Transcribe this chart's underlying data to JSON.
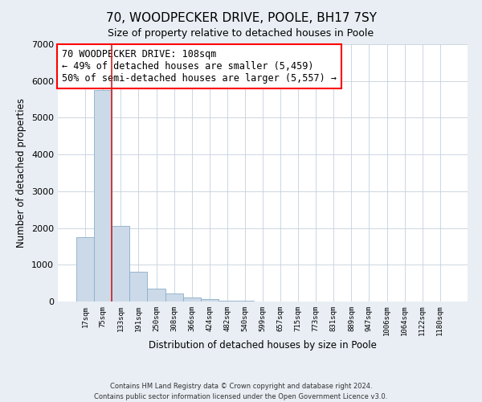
{
  "title": "70, WOODPECKER DRIVE, POOLE, BH17 7SY",
  "subtitle": "Size of property relative to detached houses in Poole",
  "xlabel": "Distribution of detached houses by size in Poole",
  "ylabel": "Number of detached properties",
  "bar_labels": [
    "17sqm",
    "75sqm",
    "133sqm",
    "191sqm",
    "250sqm",
    "308sqm",
    "366sqm",
    "424sqm",
    "482sqm",
    "540sqm",
    "599sqm",
    "657sqm",
    "715sqm",
    "773sqm",
    "831sqm",
    "889sqm",
    "947sqm",
    "1006sqm",
    "1064sqm",
    "1122sqm",
    "1180sqm"
  ],
  "bar_values": [
    1750,
    5750,
    2050,
    800,
    360,
    215,
    100,
    55,
    28,
    12,
    6,
    3,
    2,
    0,
    0,
    0,
    0,
    0,
    0,
    0,
    0
  ],
  "bar_color": "#ccd9e8",
  "bar_edgecolor": "#8aafc8",
  "vline_color": "#cc2222",
  "annotation_line1": "70 WOODPECKER DRIVE: 108sqm",
  "annotation_line2": "← 49% of detached houses are smaller (5,459)",
  "annotation_line3": "50% of semi-detached houses are larger (5,557) →",
  "ylim": [
    0,
    7000
  ],
  "yticks": [
    0,
    1000,
    2000,
    3000,
    4000,
    5000,
    6000,
    7000
  ],
  "footer_line1": "Contains HM Land Registry data © Crown copyright and database right 2024.",
  "footer_line2": "Contains public sector information licensed under the Open Government Licence v3.0.",
  "background_color": "#e8eef4",
  "plot_background": "#ffffff",
  "grid_color": "#c5d0dc",
  "title_fontsize": 11,
  "subtitle_fontsize": 9,
  "annotation_fontsize": 8.5
}
